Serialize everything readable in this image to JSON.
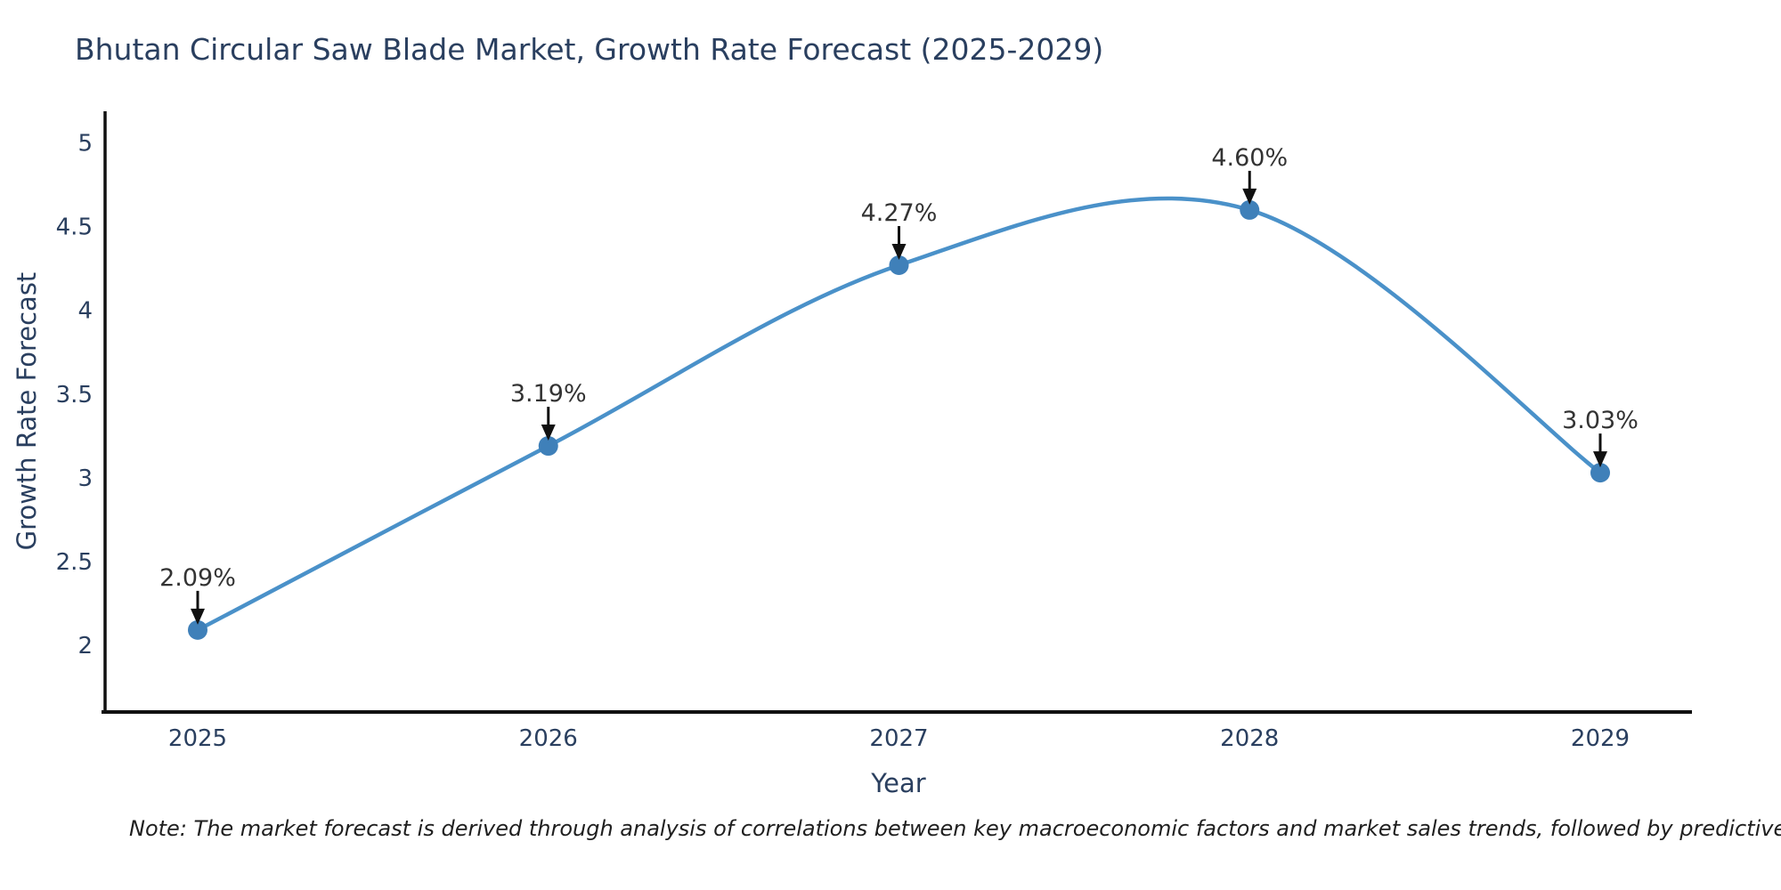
{
  "title": "Bhutan Circular Saw Blade Market, Growth Rate Forecast (2025-2029)",
  "note": "Note: The market forecast is derived through analysis of correlations between key macroeconomic factors and market sales trends, followed by predictive modeling to project future sales",
  "chart_data": {
    "type": "line",
    "title": "Bhutan Circular Saw Blade Market, Growth Rate Forecast (2025-2029)",
    "xlabel": "Year",
    "ylabel": "Growth Rate Forecast",
    "categories": [
      "2025",
      "2026",
      "2027",
      "2028",
      "2029"
    ],
    "series": [
      {
        "name": "Growth Rate Forecast",
        "values": [
          2.09,
          3.19,
          4.27,
          4.6,
          3.03
        ],
        "labels": [
          "2.09%",
          "3.19%",
          "4.27%",
          "4.60%",
          "3.03%"
        ]
      }
    ],
    "y_ticks": [
      "2",
      "2.5",
      "3",
      "3.5",
      "4",
      "4.5",
      "5"
    ],
    "ylim": [
      1.6,
      5.19
    ],
    "grid": false,
    "legend_position": "none",
    "line_shape": "spline",
    "annotation_style": "downward-arrow",
    "colors": {
      "line": "#4a91c9",
      "marker": "#3f80b9",
      "axis": "#111111",
      "text": "#2a3f5f",
      "annotation": "#333333"
    }
  }
}
